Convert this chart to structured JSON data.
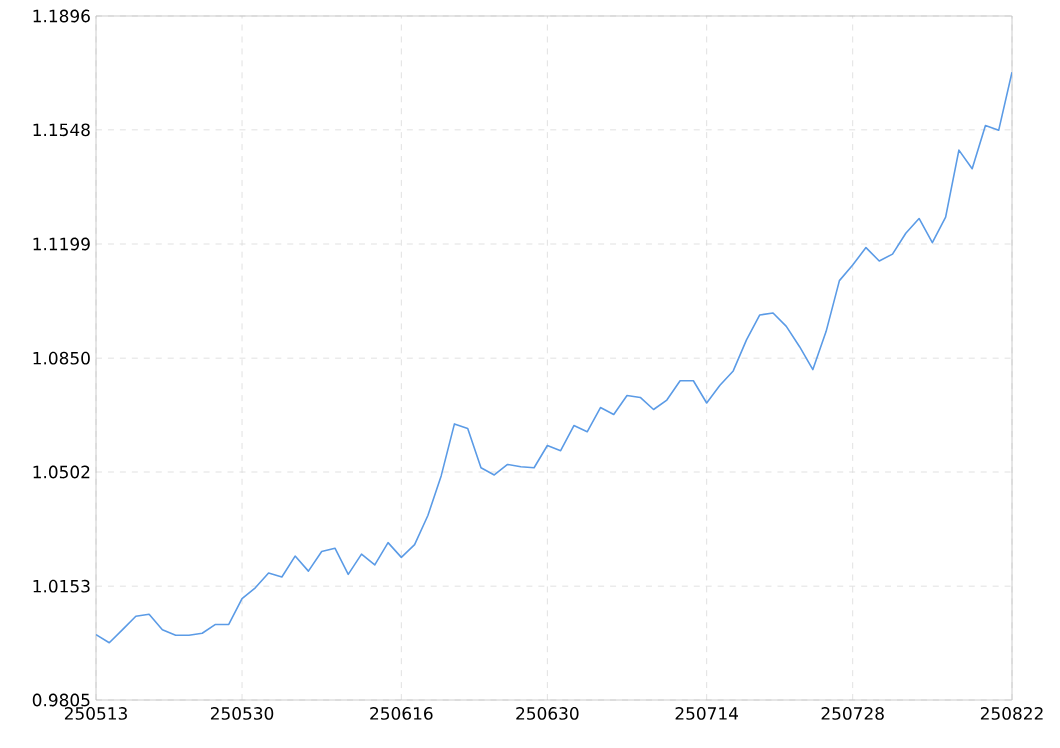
{
  "chart_data": {
    "type": "line",
    "color": "#5b9be6",
    "grid": true,
    "categories": [
      "250513",
      null,
      null,
      null,
      null,
      null,
      null,
      null,
      null,
      null,
      null,
      "250530",
      null,
      null,
      null,
      null,
      null,
      null,
      null,
      null,
      null,
      null,
      null,
      "250616",
      null,
      null,
      null,
      null,
      null,
      null,
      null,
      null,
      null,
      null,
      "250630",
      null,
      null,
      null,
      null,
      null,
      null,
      null,
      null,
      null,
      null,
      null,
      "250714",
      null,
      null,
      null,
      null,
      null,
      null,
      null,
      null,
      null,
      null,
      "250728",
      null,
      null,
      null,
      null,
      null,
      null,
      null,
      null,
      null,
      null,
      null,
      "250822"
    ],
    "values": [
      1.0005,
      0.998,
      1.002,
      1.0061,
      1.0067,
      1.002,
      1.0003,
      1.0003,
      1.0009,
      1.0036,
      1.0036,
      1.0115,
      1.0148,
      1.0193,
      1.0181,
      1.0245,
      1.0199,
      1.0259,
      1.0269,
      1.0189,
      1.0251,
      1.0218,
      1.0286,
      1.0241,
      1.028,
      1.0369,
      1.049,
      1.0649,
      1.0635,
      1.0515,
      1.0493,
      1.0525,
      1.0518,
      1.0515,
      1.0583,
      1.0567,
      1.0644,
      1.0625,
      1.0699,
      1.0678,
      1.0736,
      1.073,
      1.0693,
      1.0722,
      1.0781,
      1.0781,
      1.0713,
      1.0767,
      1.0811,
      1.0906,
      1.0982,
      1.0988,
      1.0947,
      1.0885,
      1.0815,
      1.0932,
      1.1087,
      1.1135,
      1.1188,
      1.1147,
      1.1168,
      1.1232,
      1.1277,
      1.1203,
      1.1281,
      1.1486,
      1.1429,
      1.1561,
      1.1547,
      1.1724
    ],
    "ylim": [
      0.9805,
      1.1896
    ],
    "yticks": [
      0.9805,
      1.0153,
      1.0502,
      {
        "value": 1.085,
        "label": "1.0850"
      },
      1.1199,
      1.1548,
      1.1896
    ]
  }
}
